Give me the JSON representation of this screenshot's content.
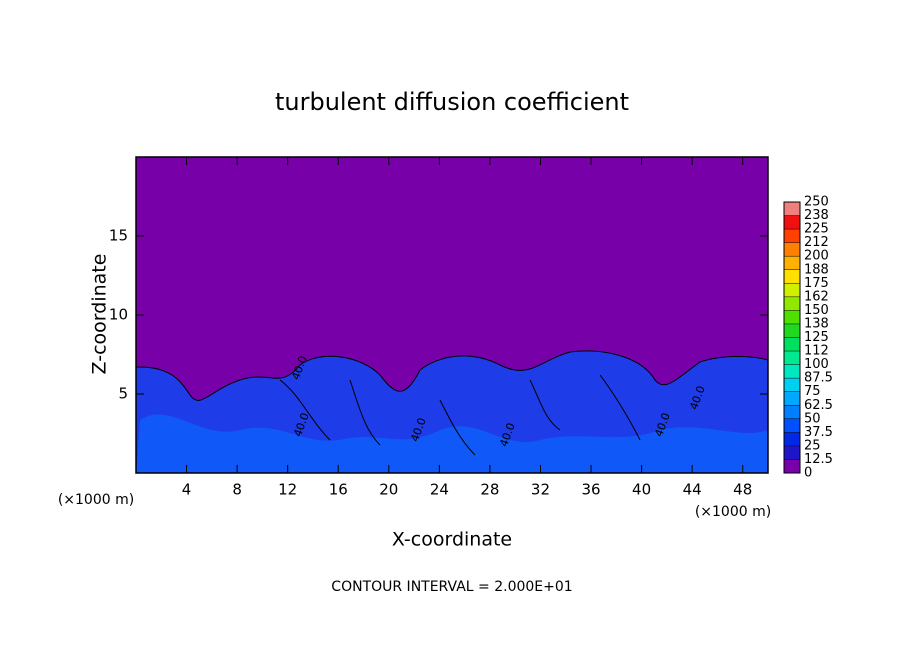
{
  "chart_data": {
    "type": "contour",
    "title": "turbulent diffusion coefficient",
    "x_label": "X-coordinate",
    "y_label": "Z-coordinate",
    "x_unit_left": "(×1000 m)",
    "x_unit_right": "(×1000 m)",
    "footer": "CONTOUR INTERVAL = 2.000E+01",
    "contour_labels": [
      "40.0",
      "40.0",
      "40.0",
      "40.0",
      "40.0",
      "40.0"
    ],
    "xlim": [
      0,
      50
    ],
    "xticks": [
      4,
      8,
      12,
      16,
      20,
      24,
      28,
      32,
      36,
      40,
      44,
      48
    ],
    "ylim": [
      0,
      20
    ],
    "yticks": [
      5,
      10,
      15
    ],
    "colorbar": {
      "levels": [
        0,
        12.5,
        25,
        37.5,
        50,
        62.5,
        75,
        87.5,
        100,
        {
          "value": 112.5,
          "label": "112"
        },
        125,
        {
          "value": 137.5,
          "label": "138"
        },
        150,
        {
          "value": 162.5,
          "label": "162"
        },
        175,
        {
          "value": 187.5,
          "label": "188"
        },
        200,
        {
          "value": 212.5,
          "label": "212"
        },
        225,
        {
          "value": 237.5,
          "label": "238"
        },
        250
      ],
      "colors": [
        "#7800a8",
        "#1e14c8",
        "#0028e6",
        "#0050ff",
        "#0080ff",
        "#00a8ff",
        "#00d0f0",
        "#00e8c0",
        "#00e890",
        "#00e060",
        "#20d820",
        "#50e000",
        "#90e800",
        "#d0f000",
        "#ffe000",
        "#ffb000",
        "#ff8000",
        "#ff4000",
        "#f01010",
        "#f08080"
      ]
    }
  }
}
